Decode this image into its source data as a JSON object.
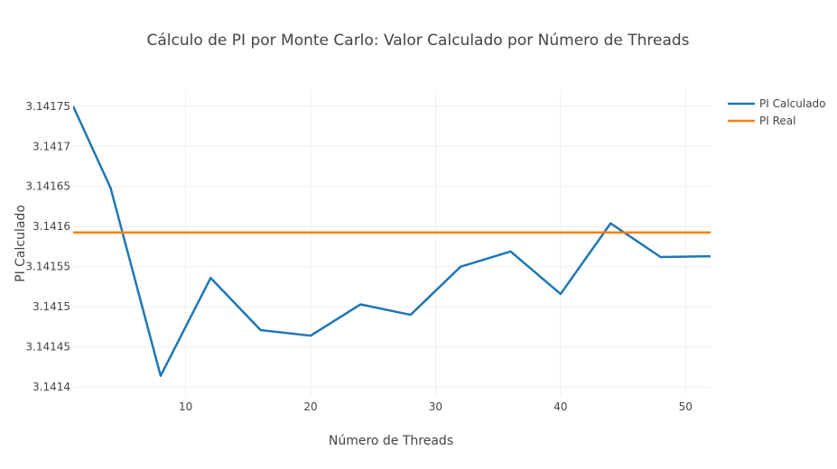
{
  "chart_data": {
    "type": "line",
    "title": "Cálculo de PI por Monte Carlo: Valor Calculado por Número de Threads",
    "xlabel": "Número de Threads",
    "ylabel": "PI Calculado",
    "xlim": [
      1,
      52
    ],
    "ylim": [
      3.14139,
      3.14177
    ],
    "x_ticks": [
      10,
      20,
      30,
      40,
      50
    ],
    "y_ticks": [
      3.1414,
      3.14145,
      3.1415,
      3.14155,
      3.1416,
      3.14165,
      3.1417,
      3.14175
    ],
    "y_tick_labels": [
      "3.1414",
      "3.14145",
      "3.1415",
      "3.14155",
      "3.1416",
      "3.14165",
      "3.1417",
      "3.14175"
    ],
    "grid": true,
    "legend_position": "top-right",
    "series": [
      {
        "name": "PI Calculado",
        "color": "#1f77b4",
        "x": [
          1,
          4,
          8,
          12,
          16,
          20,
          24,
          28,
          32,
          36,
          40,
          44,
          48,
          52
        ],
        "y": [
          3.14175,
          3.141648,
          3.141414,
          3.141536,
          3.141471,
          3.141464,
          3.141503,
          3.14149,
          3.14155,
          3.141569,
          3.141516,
          3.141604,
          3.141562,
          3.141563
        ]
      },
      {
        "name": "PI Real",
        "color": "#ff7f0e",
        "x": [
          1,
          52
        ],
        "y": [
          3.1415927,
          3.1415927
        ]
      }
    ]
  }
}
